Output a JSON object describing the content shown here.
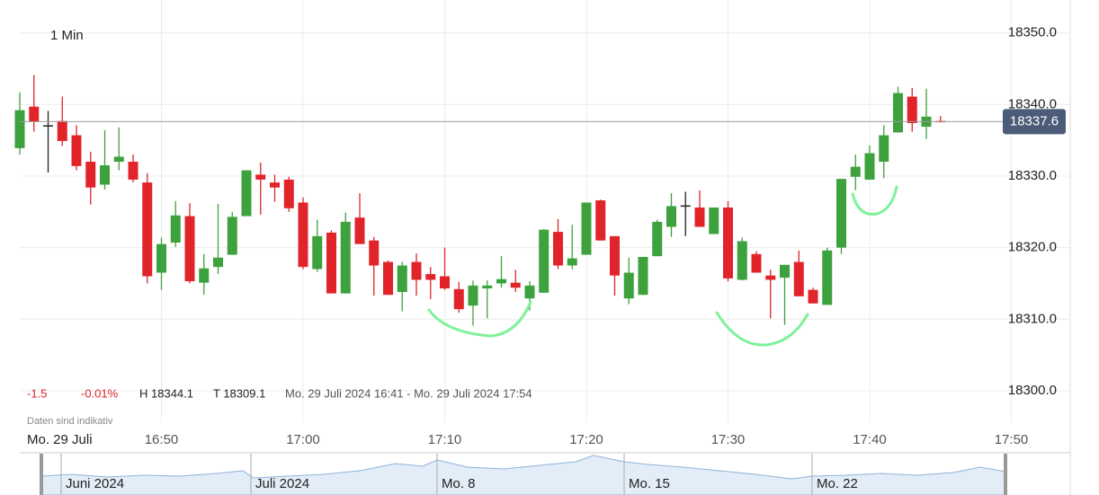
{
  "chart_data": {
    "type": "candlestick",
    "title": "1 Min",
    "change": "-1.5",
    "change_percent": "-0.01%",
    "high_label": "H 18344.1",
    "low_label": "T 18309.1",
    "range_label": "Mo. 29 Juli 2024 16:41 - Mo. 29 Juli 2024 17:54",
    "note": "Daten sind indikativ",
    "date_label": "Mo. 29 Juli",
    "navigator_labels": [
      "Juni 2024",
      "Juli 2024",
      "Mo. 8",
      "Mo. 15",
      "Mo. 22"
    ],
    "x": [
      "16:40",
      "16:41",
      "16:42",
      "16:43",
      "16:44",
      "16:45",
      "16:46",
      "16:47",
      "16:48",
      "16:49",
      "16:50",
      "16:51",
      "16:52",
      "16:53",
      "16:54",
      "16:55",
      "16:56",
      "16:57",
      "16:58",
      "16:59",
      "17:00",
      "17:01",
      "17:02",
      "17:03",
      "17:04",
      "17:05",
      "17:06",
      "17:07",
      "17:08",
      "17:09",
      "17:10",
      "17:11",
      "17:12",
      "17:13",
      "17:14",
      "17:15",
      "17:16",
      "17:17",
      "17:18",
      "17:19",
      "17:20",
      "17:21",
      "17:22",
      "17:23",
      "17:24",
      "17:25",
      "17:26",
      "17:27",
      "17:28",
      "17:29",
      "17:30",
      "17:31",
      "17:32",
      "17:33",
      "17:34",
      "17:35",
      "17:36",
      "17:37",
      "17:38",
      "17:39",
      "17:40",
      "17:41",
      "17:42",
      "17:43",
      "17:44",
      "17:45"
    ],
    "open": [
      18333.9,
      18339.7,
      18337.1,
      18337.7,
      18335.7,
      18332.0,
      18328.8,
      18332.0,
      18332.0,
      18329.1,
      18316.5,
      18320.7,
      18324.4,
      18315.1,
      18317.3,
      18319.0,
      18324.4,
      18330.2,
      18329.1,
      18329.5,
      18326.3,
      18317.0,
      18322.1,
      18313.6,
      18324.2,
      18321.0,
      18318.0,
      18313.8,
      18318.0,
      18316.3,
      18316.0,
      18314.2,
      18311.9,
      18314.3,
      18315.0,
      18315.1,
      18312.9,
      18313.7,
      18322.2,
      18317.5,
      18319.0,
      18326.6,
      18321.6,
      18312.9,
      18313.4,
      18318.8,
      18322.9,
      18325.9,
      18325.6,
      18321.9,
      18325.6,
      18315.5,
      18319.1,
      18316.1,
      18315.8,
      18318.0,
      18314.1,
      18312.0,
      18320.0,
      18329.9,
      18329.5,
      18332.0,
      18336.1,
      18341.1,
      18336.9,
      18337.7
    ],
    "high": [
      18341.7,
      18344.1,
      18339.1,
      18341.1,
      18337.1,
      18333.4,
      18336.4,
      18336.8,
      18333.0,
      18330.4,
      18321.4,
      18326.5,
      18326.2,
      18319.1,
      18326.1,
      18325.0,
      18330.8,
      18331.9,
      18330.2,
      18329.9,
      18327.0,
      18323.9,
      18322.4,
      18324.9,
      18327.6,
      18321.5,
      18318.2,
      18318.0,
      18319.2,
      18317.3,
      18320.0,
      18315.2,
      18315.4,
      18315.4,
      18318.8,
      18316.9,
      18315.3,
      18322.6,
      18324.0,
      18323.2,
      18326.3,
      18326.7,
      18321.6,
      18318.6,
      18318.7,
      18323.9,
      18327.6,
      18327.8,
      18328.0,
      18325.6,
      18326.5,
      18321.4,
      18319.5,
      18316.9,
      18317.6,
      18319.6,
      18314.4,
      18320.0,
      18329.6,
      18333.0,
      18334.3,
      18337.1,
      18342.5,
      18342.3,
      18342.2,
      18338.4
    ],
    "low": [
      18333.0,
      18336.2,
      18330.5,
      18334.2,
      18330.8,
      18326.0,
      18328.1,
      18330.8,
      18329.1,
      18315.0,
      18314.1,
      18320.1,
      18315.0,
      18313.4,
      18316.3,
      18319.0,
      18324.4,
      18324.6,
      18326.4,
      18325.0,
      18317.0,
      18316.6,
      18313.6,
      18313.6,
      18320.5,
      18313.3,
      18313.4,
      18311.1,
      18313.3,
      18312.8,
      18314.1,
      18310.9,
      18309.1,
      18310.1,
      18314.4,
      18313.8,
      18311.2,
      18313.7,
      18317.0,
      18317.0,
      18319.0,
      18321.0,
      18313.3,
      18312.1,
      18313.4,
      18318.8,
      18321.5,
      18321.6,
      18322.9,
      18321.9,
      18315.3,
      18315.4,
      18316.5,
      18310.1,
      18309.2,
      18313.2,
      18312.2,
      18312.0,
      18319.1,
      18328.0,
      18329.5,
      18329.7,
      18336.1,
      18336.2,
      18335.2,
      18337.6
    ],
    "close": [
      18339.2,
      18337.6,
      18337.1,
      18334.9,
      18331.4,
      18328.4,
      18331.5,
      18332.7,
      18329.5,
      18316.0,
      18320.5,
      18324.5,
      18315.3,
      18317.1,
      18318.6,
      18324.3,
      18330.8,
      18329.5,
      18328.4,
      18325.5,
      18317.3,
      18321.6,
      18313.6,
      18323.6,
      18320.5,
      18317.5,
      18313.4,
      18317.5,
      18315.5,
      18315.5,
      18314.3,
      18311.4,
      18314.7,
      18314.7,
      18315.6,
      18314.4,
      18314.7,
      18322.5,
      18317.5,
      18318.5,
      18326.3,
      18321.0,
      18316.1,
      18316.5,
      18318.7,
      18323.6,
      18325.8,
      18325.9,
      18322.9,
      18325.6,
      18315.7,
      18320.9,
      18316.5,
      18315.5,
      18317.6,
      18313.2,
      18312.2,
      18319.6,
      18329.6,
      18331.3,
      18333.2,
      18335.7,
      18341.6,
      18337.4,
      18338.3,
      18337.6
    ],
    "up_color": "#3da23d",
    "down_color": "#e0242a",
    "flat_color": "#222222",
    "ylim": [
      18295.6,
      18354.6
    ],
    "yticks": [
      {
        "value": 18300,
        "label": "18300.0"
      },
      {
        "value": 18310,
        "label": "18310.0"
      },
      {
        "value": 18320,
        "label": "18320.0"
      },
      {
        "value": 18330,
        "label": "18330.0"
      },
      {
        "value": 18340,
        "label": "18340.0"
      },
      {
        "value": 18350,
        "label": "18350.0"
      }
    ],
    "xticks": [
      "16:50",
      "17:00",
      "17:10",
      "17:20",
      "17:30",
      "17:40",
      "17:50"
    ],
    "last_price": {
      "value": 18337.6,
      "label": "18337.6"
    },
    "grid": true
  }
}
